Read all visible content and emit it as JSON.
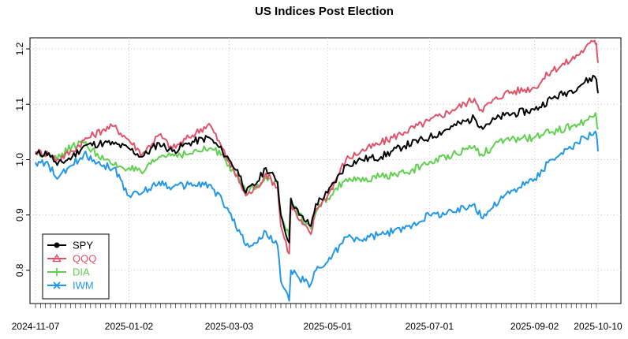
{
  "chart_data": {
    "type": "line",
    "title": "US Indices Post Election",
    "xlabel": "",
    "ylabel": "",
    "x_tick_labels": [
      "2024-11-07",
      "2025-01-02",
      "2025-03-03",
      "2025-05-01",
      "2025-07-01",
      "2025-09-02",
      "2025-10-10"
    ],
    "x_tick_dates": [
      "2024-11-07",
      "2025-01-02",
      "2025-03-03",
      "2025-05-01",
      "2025-07-01",
      "2025-09-02",
      "2025-10-10"
    ],
    "y_ticks": [
      0.8,
      0.9,
      1.0,
      1.1,
      1.2
    ],
    "y_tick_labels": [
      "0.8",
      "0.9",
      "1.0",
      "1.1",
      "1.2"
    ],
    "ylim": [
      0.74,
      1.22
    ],
    "xlim": [
      "2024-11-07",
      "2025-10-10"
    ],
    "grid": true,
    "legend_position": "bottom-left",
    "series": [
      {
        "name": "SPY",
        "color": "#000000",
        "marker": "circle",
        "points": [
          [
            "2024-11-07",
            1.01
          ],
          [
            "2024-11-15",
            1.012
          ],
          [
            "2024-11-20",
            0.99
          ],
          [
            "2024-11-29",
            1.005
          ],
          [
            "2024-12-06",
            1.025
          ],
          [
            "2024-12-18",
            1.03
          ],
          [
            "2024-12-24",
            1.028
          ],
          [
            "2025-01-02",
            1.02
          ],
          [
            "2025-01-10",
            1.005
          ],
          [
            "2025-01-20",
            1.03
          ],
          [
            "2025-01-28",
            1.015
          ],
          [
            "2025-02-07",
            1.03
          ],
          [
            "2025-02-19",
            1.04
          ],
          [
            "2025-02-27",
            1.015
          ],
          [
            "2025-03-03",
            1.0
          ],
          [
            "2025-03-10",
            0.97
          ],
          [
            "2025-03-13",
            0.94
          ],
          [
            "2025-03-20",
            0.96
          ],
          [
            "2025-03-25",
            0.985
          ],
          [
            "2025-04-01",
            0.96
          ],
          [
            "2025-04-03",
            0.9
          ],
          [
            "2025-04-08",
            0.85
          ],
          [
            "2025-04-09",
            0.93
          ],
          [
            "2025-04-14",
            0.9
          ],
          [
            "2025-04-21",
            0.88
          ],
          [
            "2025-04-24",
            0.92
          ],
          [
            "2025-05-01",
            0.94
          ],
          [
            "2025-05-12",
            0.99
          ],
          [
            "2025-05-21",
            1.0
          ],
          [
            "2025-06-02",
            1.005
          ],
          [
            "2025-06-16",
            1.025
          ],
          [
            "2025-07-01",
            1.04
          ],
          [
            "2025-07-15",
            1.06
          ],
          [
            "2025-07-28",
            1.075
          ],
          [
            "2025-08-01",
            1.06
          ],
          [
            "2025-08-15",
            1.08
          ],
          [
            "2025-09-02",
            1.09
          ],
          [
            "2025-09-12",
            1.11
          ],
          [
            "2025-09-24",
            1.125
          ],
          [
            "2025-10-02",
            1.14
          ],
          [
            "2025-10-08",
            1.15
          ],
          [
            "2025-10-09",
            1.145
          ],
          [
            "2025-10-10",
            1.12
          ]
        ]
      },
      {
        "name": "QQQ",
        "color": "#DF536B",
        "marker": "triangle",
        "points": [
          [
            "2024-11-07",
            1.015
          ],
          [
            "2024-11-15",
            1.01
          ],
          [
            "2024-11-20",
            1.0
          ],
          [
            "2024-11-29",
            1.015
          ],
          [
            "2024-12-06",
            1.035
          ],
          [
            "2024-12-18",
            1.055
          ],
          [
            "2024-12-24",
            1.06
          ],
          [
            "2025-01-02",
            1.035
          ],
          [
            "2025-01-10",
            1.01
          ],
          [
            "2025-01-20",
            1.045
          ],
          [
            "2025-01-28",
            1.02
          ],
          [
            "2025-02-07",
            1.04
          ],
          [
            "2025-02-19",
            1.065
          ],
          [
            "2025-02-27",
            1.02
          ],
          [
            "2025-03-03",
            0.995
          ],
          [
            "2025-03-10",
            0.955
          ],
          [
            "2025-03-13",
            0.935
          ],
          [
            "2025-03-20",
            0.95
          ],
          [
            "2025-03-25",
            0.975
          ],
          [
            "2025-04-01",
            0.95
          ],
          [
            "2025-04-03",
            0.88
          ],
          [
            "2025-04-08",
            0.83
          ],
          [
            "2025-04-09",
            0.92
          ],
          [
            "2025-04-14",
            0.89
          ],
          [
            "2025-04-21",
            0.865
          ],
          [
            "2025-04-24",
            0.91
          ],
          [
            "2025-05-01",
            0.935
          ],
          [
            "2025-05-12",
            1.0
          ],
          [
            "2025-05-21",
            1.015
          ],
          [
            "2025-06-02",
            1.03
          ],
          [
            "2025-06-16",
            1.05
          ],
          [
            "2025-07-01",
            1.07
          ],
          [
            "2025-07-15",
            1.09
          ],
          [
            "2025-07-28",
            1.11
          ],
          [
            "2025-08-01",
            1.09
          ],
          [
            "2025-08-15",
            1.12
          ],
          [
            "2025-09-02",
            1.13
          ],
          [
            "2025-09-12",
            1.16
          ],
          [
            "2025-09-24",
            1.18
          ],
          [
            "2025-10-02",
            1.2
          ],
          [
            "2025-10-08",
            1.215
          ],
          [
            "2025-10-09",
            1.21
          ],
          [
            "2025-10-10",
            1.175
          ]
        ]
      },
      {
        "name": "DIA",
        "color": "#61D04F",
        "marker": "plus",
        "points": [
          [
            "2024-11-07",
            1.01
          ],
          [
            "2024-11-15",
            1.012
          ],
          [
            "2024-11-20",
            1.0
          ],
          [
            "2024-11-29",
            1.025
          ],
          [
            "2024-12-06",
            1.03
          ],
          [
            "2024-12-18",
            1.0
          ],
          [
            "2024-12-24",
            0.99
          ],
          [
            "2025-01-02",
            0.985
          ],
          [
            "2025-01-10",
            0.975
          ],
          [
            "2025-01-20",
            1.005
          ],
          [
            "2025-01-28",
            1.01
          ],
          [
            "2025-02-07",
            1.01
          ],
          [
            "2025-02-19",
            1.02
          ],
          [
            "2025-02-27",
            1.01
          ],
          [
            "2025-03-03",
            0.99
          ],
          [
            "2025-03-10",
            0.96
          ],
          [
            "2025-03-13",
            0.94
          ],
          [
            "2025-03-20",
            0.955
          ],
          [
            "2025-03-25",
            0.97
          ],
          [
            "2025-04-01",
            0.955
          ],
          [
            "2025-04-03",
            0.9
          ],
          [
            "2025-04-08",
            0.86
          ],
          [
            "2025-04-09",
            0.93
          ],
          [
            "2025-04-14",
            0.9
          ],
          [
            "2025-04-21",
            0.875
          ],
          [
            "2025-04-24",
            0.905
          ],
          [
            "2025-05-01",
            0.93
          ],
          [
            "2025-05-12",
            0.965
          ],
          [
            "2025-05-21",
            0.96
          ],
          [
            "2025-06-02",
            0.97
          ],
          [
            "2025-06-16",
            0.975
          ],
          [
            "2025-07-01",
            0.995
          ],
          [
            "2025-07-15",
            1.01
          ],
          [
            "2025-07-28",
            1.025
          ],
          [
            "2025-08-01",
            1.01
          ],
          [
            "2025-08-15",
            1.035
          ],
          [
            "2025-09-02",
            1.04
          ],
          [
            "2025-09-12",
            1.05
          ],
          [
            "2025-09-24",
            1.06
          ],
          [
            "2025-10-02",
            1.07
          ],
          [
            "2025-10-08",
            1.08
          ],
          [
            "2025-10-09",
            1.075
          ],
          [
            "2025-10-10",
            1.055
          ]
        ]
      },
      {
        "name": "IWM",
        "color": "#2297E6",
        "marker": "cross",
        "points": [
          [
            "2024-11-07",
            0.995
          ],
          [
            "2024-11-15",
            0.99
          ],
          [
            "2024-11-20",
            0.965
          ],
          [
            "2024-11-29",
            0.99
          ],
          [
            "2024-12-06",
            1.01
          ],
          [
            "2024-12-18",
            0.99
          ],
          [
            "2024-12-24",
            0.985
          ],
          [
            "2025-01-02",
            0.935
          ],
          [
            "2025-01-10",
            0.94
          ],
          [
            "2025-01-20",
            0.96
          ],
          [
            "2025-01-28",
            0.95
          ],
          [
            "2025-02-07",
            0.955
          ],
          [
            "2025-02-19",
            0.955
          ],
          [
            "2025-02-27",
            0.925
          ],
          [
            "2025-03-03",
            0.905
          ],
          [
            "2025-03-10",
            0.865
          ],
          [
            "2025-03-13",
            0.845
          ],
          [
            "2025-03-20",
            0.85
          ],
          [
            "2025-03-25",
            0.87
          ],
          [
            "2025-04-01",
            0.845
          ],
          [
            "2025-04-03",
            0.78
          ],
          [
            "2025-04-08",
            0.745
          ],
          [
            "2025-04-09",
            0.8
          ],
          [
            "2025-04-14",
            0.785
          ],
          [
            "2025-04-21",
            0.775
          ],
          [
            "2025-04-24",
            0.8
          ],
          [
            "2025-05-01",
            0.815
          ],
          [
            "2025-05-12",
            0.86
          ],
          [
            "2025-05-21",
            0.855
          ],
          [
            "2025-06-02",
            0.865
          ],
          [
            "2025-06-16",
            0.875
          ],
          [
            "2025-07-01",
            0.9
          ],
          [
            "2025-07-15",
            0.905
          ],
          [
            "2025-07-28",
            0.92
          ],
          [
            "2025-08-01",
            0.895
          ],
          [
            "2025-08-15",
            0.935
          ],
          [
            "2025-09-02",
            0.965
          ],
          [
            "2025-09-12",
            1.0
          ],
          [
            "2025-09-24",
            1.02
          ],
          [
            "2025-10-02",
            1.04
          ],
          [
            "2025-10-08",
            1.05
          ],
          [
            "2025-10-09",
            1.045
          ],
          [
            "2025-10-10",
            1.015
          ]
        ]
      }
    ]
  }
}
